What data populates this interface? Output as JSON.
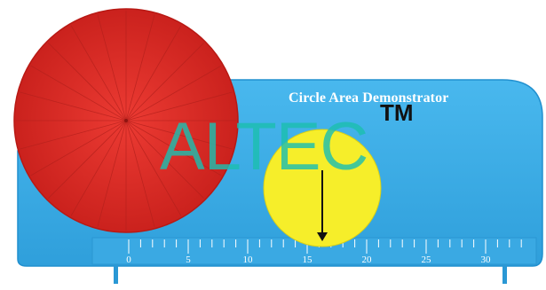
{
  "product": {
    "title": "Circle Area Demonstrator",
    "ruler_labels": [
      "0",
      "5",
      "10",
      "15",
      "20",
      "25",
      "30"
    ],
    "colors": {
      "base": "#3eaee6",
      "base_dark": "#1f86c4",
      "red_disk": "#e8322c",
      "yellow_disk": "#f6ee2a"
    }
  },
  "watermark": {
    "brand": "ALTEC",
    "trademark": "TM"
  }
}
